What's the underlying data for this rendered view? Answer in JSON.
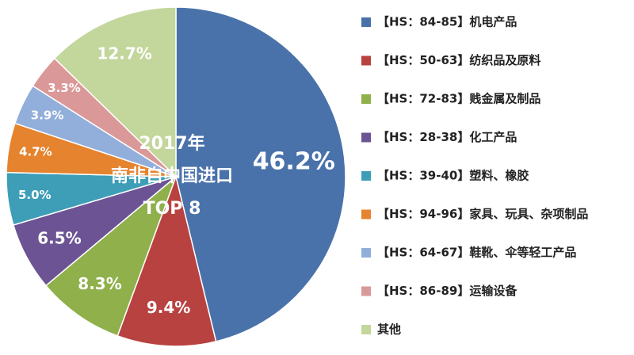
{
  "chart_data": {
    "type": "pie",
    "center_text": [
      "2017年",
      "南非自中国进口",
      "TOP 8"
    ],
    "categories": [
      "【HS：84-85】机电产品",
      "【HS：50-63】纺织品及原料",
      "【HS：72-83】贱金属及制品",
      "【HS：28-38】化工产品",
      "【HS：39-40】塑料、橡胶",
      "【HS：94-96】家具、玩具、杂项制品",
      "【HS：64-67】鞋靴、伞等轻工产品",
      "【HS：86-89】运输设备",
      "其他"
    ],
    "values": [
      46.2,
      9.4,
      8.3,
      6.5,
      5.0,
      4.7,
      3.9,
      3.3,
      12.7
    ],
    "value_labels": [
      "46.2%",
      "9.4%",
      "8.3%",
      "6.5%",
      "5.0%",
      "4.7%",
      "3.9%",
      "3.3%",
      "12.7%"
    ],
    "colors": [
      "#4a72aa",
      "#b84240",
      "#8fb04a",
      "#6c5494",
      "#3e9eb8",
      "#e5832e",
      "#92aedb",
      "#db9898",
      "#c3d69b"
    ]
  }
}
